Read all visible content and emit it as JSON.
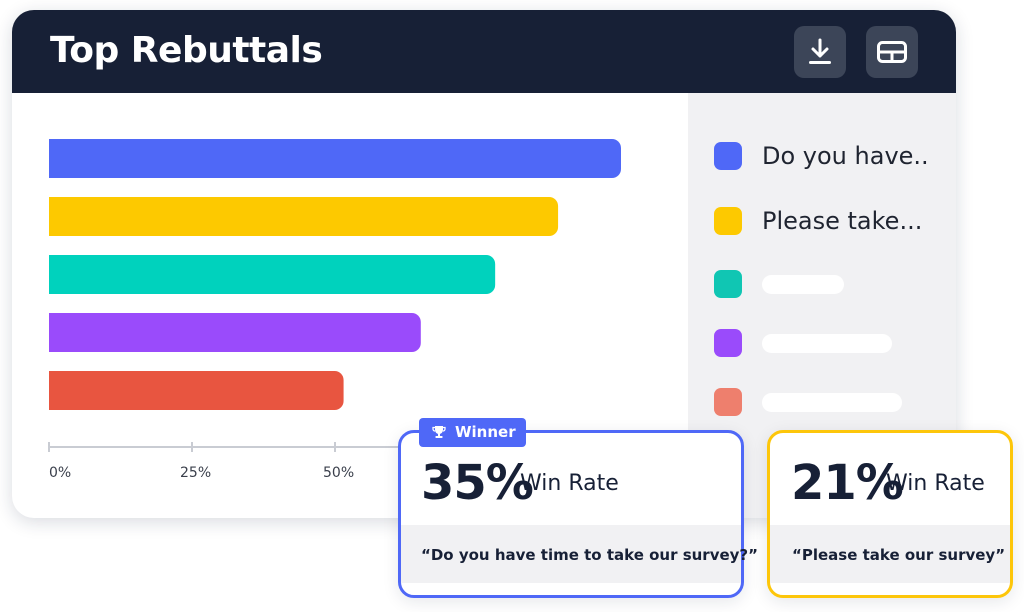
{
  "header": {
    "title": "Top Rebuttals",
    "buttons": [
      {
        "icon": "download-icon"
      },
      {
        "icon": "table-icon"
      }
    ]
  },
  "chart_data": {
    "type": "bar",
    "orientation": "horizontal",
    "values": [
      100,
      89,
      78,
      65,
      51.5
    ],
    "colors": [
      "#4f68f7",
      "#fdc900",
      "#00d2bd",
      "#9a4bfb",
      "#e85540"
    ],
    "ticks": [
      "0%",
      "25%",
      "50%"
    ],
    "xlim": [
      0,
      100
    ]
  },
  "legend": [
    {
      "label": "Do you have..",
      "color": "#4f68f7",
      "placeholder": false
    },
    {
      "label": "Please take...",
      "color": "#fdc900",
      "placeholder": false
    },
    {
      "label": "",
      "color": "#10c6b3",
      "placeholder": true
    },
    {
      "label": "",
      "color": "#9a4bfb",
      "placeholder": true
    },
    {
      "label": "",
      "color": "#ee7f6d",
      "placeholder": true
    }
  ],
  "cards": [
    {
      "badge": "Winner",
      "percent": "35%",
      "metric": "Win Rate",
      "quote": "“Do you have time to take our survey?”",
      "border": "#4f68f7"
    },
    {
      "percent": "21%",
      "metric": "Win Rate",
      "quote": "“Please take our survey”",
      "border": "#fdc60a"
    }
  ]
}
